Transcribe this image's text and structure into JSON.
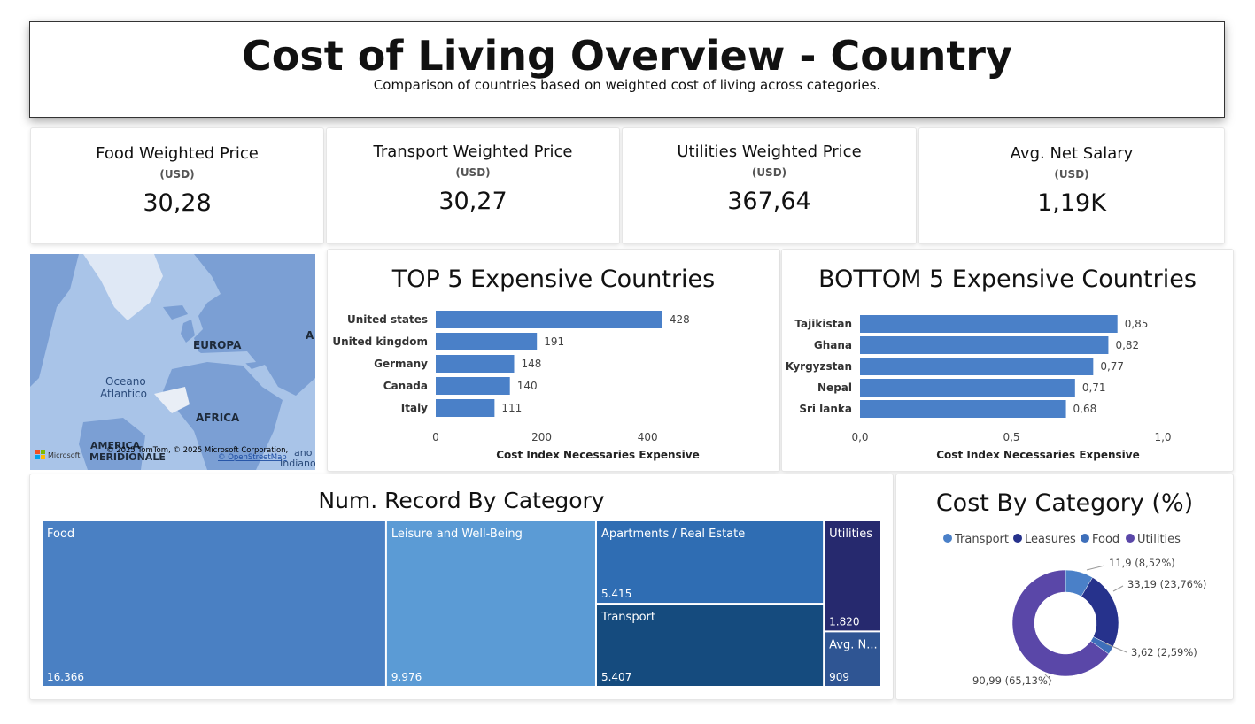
{
  "header": {
    "title": "Cost of Living Overview - Country",
    "subtitle": "Comparison of countries based on weighted cost of living across categories."
  },
  "kpis": [
    {
      "label": "Food Weighted Price",
      "unit": "(USD)",
      "value": "30,28"
    },
    {
      "label": "Transport Weighted Price",
      "unit": "(USD)",
      "value": "30,27"
    },
    {
      "label": "Utilities Weighted Price",
      "unit": "(USD)",
      "value": "367,64"
    },
    {
      "label": "Avg. Net Salary",
      "unit": "(USD)",
      "value": "1,19K"
    }
  ],
  "map": {
    "labels": [
      "EUROPA",
      "Oceano",
      "Atlantico",
      "AFRICA",
      "AMERICA",
      "MERIDIONALE",
      "A",
      "ano",
      "Indiano"
    ],
    "attribution": "© 2025 TomTom, © 2025 Microsoft Corporation,",
    "attribution_link": "© OpenStreetMap",
    "brand": "Microsoft",
    "colors": {
      "water": "#a9c4e8",
      "land": "#7b9fd4",
      "ice": "#dfe8f5"
    }
  },
  "chart_data": [
    {
      "type": "bar",
      "orientation": "horizontal",
      "title": "TOP 5 Expensive Countries",
      "categories": [
        "United states",
        "United kingdom",
        "Germany",
        "Canada",
        "Italy"
      ],
      "values": [
        428,
        191,
        148,
        140,
        111
      ],
      "data_labels": [
        "428",
        "191",
        "148",
        "140",
        "111"
      ],
      "xlabel": "Cost Index Necessaries Expensive",
      "xticks": [
        "0",
        "200",
        "400"
      ],
      "xtick_values": [
        0,
        200,
        400
      ],
      "xlim": [
        0,
        480
      ],
      "color": "#4a80c8"
    },
    {
      "type": "bar",
      "orientation": "horizontal",
      "title": "BOTTOM 5 Expensive Countries",
      "categories": [
        "Tajikistan",
        "Ghana",
        "Kyrgyzstan",
        "Nepal",
        "Sri lanka"
      ],
      "values": [
        0.85,
        0.82,
        0.77,
        0.71,
        0.68
      ],
      "data_labels": [
        "0,85",
        "0,82",
        "0,77",
        "0,71",
        "0,68"
      ],
      "xlabel": "Cost Index Necessaries Expensive",
      "xticks": [
        "0,0",
        "0,5",
        "1,0"
      ],
      "xtick_values": [
        0,
        0.5,
        1.0
      ],
      "xlim": [
        0,
        1.0
      ],
      "color": "#4a80c8"
    },
    {
      "type": "treemap",
      "title": "Num. Record By Category",
      "items": [
        {
          "name": "Food",
          "value": 16366,
          "label": "16.366",
          "color": "#4a80c3"
        },
        {
          "name": "Leisure and Well-Being",
          "value": 9976,
          "label": "9.976",
          "color": "#5b9bd5"
        },
        {
          "name": "Apartments / Real Estate",
          "value": 5415,
          "label": "5.415",
          "color": "#2f6db3"
        },
        {
          "name": "Transport",
          "value": 5407,
          "label": "5.407",
          "color": "#154b7e"
        },
        {
          "name": "Utilities",
          "value": 1820,
          "label": "1.820",
          "color": "#26296e"
        },
        {
          "name": "Avg. N...",
          "value": 909,
          "label": "909",
          "color": "#2f5593"
        }
      ]
    },
    {
      "type": "pie",
      "subtype": "donut",
      "title": "Cost By Category (%)",
      "legend": [
        "Transport",
        "Leasures",
        "Food",
        "Utilities"
      ],
      "legend_position": "top",
      "slices": [
        {
          "name": "Transport",
          "value": 11.9,
          "label": "11,9 (8,52%)",
          "color": "#4a80c8"
        },
        {
          "name": "Leasures",
          "value": 33.19,
          "label": "33,19 (23,76%)",
          "color": "#26328c"
        },
        {
          "name": "Food",
          "value": 3.62,
          "label": "3,62 (2,59%)",
          "color": "#3e6fba"
        },
        {
          "name": "Utilities",
          "value": 90.99,
          "label": "90,99 (65,13%)",
          "color": "#5a47a8"
        }
      ]
    }
  ]
}
